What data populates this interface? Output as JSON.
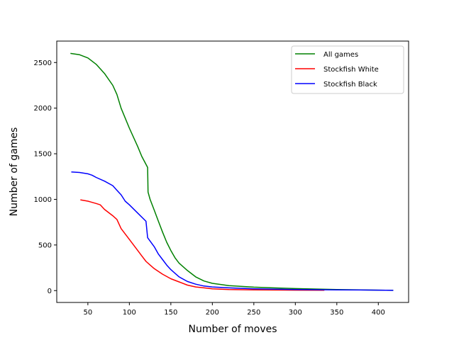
{
  "chart_data": {
    "type": "line",
    "xlabel": "Number of moves",
    "ylabel": "Number of games",
    "xlim": [
      12.5,
      436.5
    ],
    "ylim": [
      -130,
      2735
    ],
    "x_ticks": [
      50,
      100,
      150,
      200,
      250,
      300,
      350,
      400
    ],
    "y_ticks": [
      0,
      500,
      1000,
      1500,
      2000,
      2500
    ],
    "grid": false,
    "legend_position": "top-right",
    "series": [
      {
        "name": "All games",
        "color": "#008000",
        "points": [
          [
            29,
            2600
          ],
          [
            40,
            2585
          ],
          [
            50,
            2550
          ],
          [
            60,
            2480
          ],
          [
            70,
            2380
          ],
          [
            80,
            2250
          ],
          [
            85,
            2150
          ],
          [
            90,
            2000
          ],
          [
            100,
            1780
          ],
          [
            110,
            1580
          ],
          [
            115,
            1470
          ],
          [
            122,
            1350
          ],
          [
            122.5,
            1080
          ],
          [
            125,
            1000
          ],
          [
            130,
            880
          ],
          [
            135,
            760
          ],
          [
            140,
            640
          ],
          [
            145,
            530
          ],
          [
            150,
            440
          ],
          [
            155,
            360
          ],
          [
            160,
            300
          ],
          [
            170,
            220
          ],
          [
            180,
            150
          ],
          [
            190,
            105
          ],
          [
            200,
            80
          ],
          [
            220,
            55
          ],
          [
            250,
            38
          ],
          [
            300,
            22
          ],
          [
            350,
            12
          ],
          [
            400,
            5
          ],
          [
            418,
            3
          ]
        ]
      },
      {
        "name": "Stockfish White",
        "color": "#ff0000",
        "points": [
          [
            41,
            995
          ],
          [
            50,
            980
          ],
          [
            60,
            955
          ],
          [
            65,
            940
          ],
          [
            70,
            890
          ],
          [
            80,
            820
          ],
          [
            85,
            780
          ],
          [
            90,
            680
          ],
          [
            100,
            560
          ],
          [
            110,
            440
          ],
          [
            115,
            380
          ],
          [
            120,
            320
          ],
          [
            125,
            280
          ],
          [
            130,
            240
          ],
          [
            140,
            180
          ],
          [
            150,
            130
          ],
          [
            160,
            95
          ],
          [
            170,
            60
          ],
          [
            180,
            40
          ],
          [
            190,
            30
          ],
          [
            200,
            20
          ],
          [
            220,
            12
          ],
          [
            250,
            8
          ],
          [
            300,
            5
          ],
          [
            335,
            4
          ]
        ]
      },
      {
        "name": "Stockfish Black",
        "color": "#0000ff",
        "points": [
          [
            30,
            1300
          ],
          [
            40,
            1295
          ],
          [
            50,
            1280
          ],
          [
            55,
            1265
          ],
          [
            60,
            1240
          ],
          [
            70,
            1200
          ],
          [
            80,
            1150
          ],
          [
            85,
            1100
          ],
          [
            90,
            1050
          ],
          [
            95,
            980
          ],
          [
            100,
            940
          ],
          [
            110,
            850
          ],
          [
            120,
            760
          ],
          [
            122,
            580
          ],
          [
            130,
            480
          ],
          [
            135,
            400
          ],
          [
            140,
            340
          ],
          [
            145,
            280
          ],
          [
            150,
            230
          ],
          [
            160,
            150
          ],
          [
            170,
            100
          ],
          [
            180,
            70
          ],
          [
            190,
            50
          ],
          [
            200,
            40
          ],
          [
            220,
            30
          ],
          [
            250,
            20
          ],
          [
            300,
            12
          ],
          [
            350,
            8
          ],
          [
            400,
            5
          ],
          [
            418,
            3
          ]
        ]
      }
    ]
  }
}
